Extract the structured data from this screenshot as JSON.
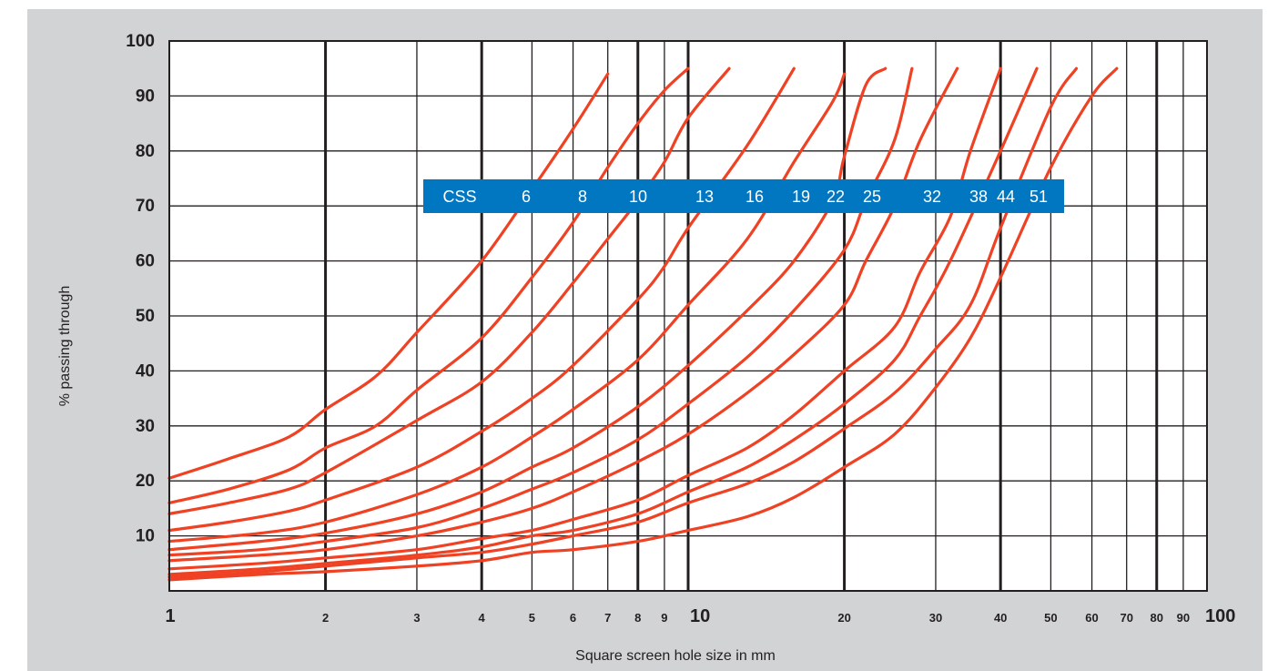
{
  "chart_data": {
    "type": "line",
    "title": "",
    "xlabel": "Square screen hole size in mm",
    "ylabel": "% passing through",
    "x_scale": "log",
    "xlim": [
      1,
      100
    ],
    "ylim": [
      0,
      100
    ],
    "grid": true,
    "x_major_ticks": [
      1,
      10,
      100
    ],
    "x_minor_ticks": [
      2,
      3,
      4,
      5,
      6,
      7,
      8,
      9,
      20,
      30,
      40,
      50,
      60,
      70,
      80,
      90
    ],
    "x_tick_labels": [
      "1",
      "2",
      "3",
      "4",
      "5",
      "6",
      "7",
      "8",
      "9",
      "10",
      "20",
      "30",
      "40",
      "50",
      "60",
      "70",
      "80",
      "90",
      "100"
    ],
    "y_ticks": [
      10,
      20,
      30,
      40,
      50,
      60,
      70,
      80,
      90,
      100
    ],
    "y_tick_labels": [
      "10",
      "20",
      "30",
      "40",
      "50",
      "60",
      "70",
      "80",
      "90",
      "100"
    ],
    "legend_title": "CSS",
    "legend_placement": "top-center",
    "legend_color": "#0077c0",
    "line_color": "#ef4123",
    "series": [
      {
        "name": "6",
        "points": [
          [
            1,
            20.5
          ],
          [
            1.3,
            24
          ],
          [
            1.7,
            28
          ],
          [
            2,
            33
          ],
          [
            2.5,
            39
          ],
          [
            3,
            47
          ],
          [
            4,
            60
          ],
          [
            5,
            73
          ],
          [
            6,
            84
          ],
          [
            7,
            94
          ]
        ]
      },
      {
        "name": "8",
        "points": [
          [
            1,
            16
          ],
          [
            1.3,
            18.5
          ],
          [
            1.7,
            22
          ],
          [
            2,
            26
          ],
          [
            2.5,
            30
          ],
          [
            3,
            36.5
          ],
          [
            4,
            46
          ],
          [
            5,
            57
          ],
          [
            6,
            67
          ],
          [
            7,
            77
          ],
          [
            8,
            85
          ],
          [
            9,
            91
          ],
          [
            10,
            95
          ]
        ]
      },
      {
        "name": "10",
        "points": [
          [
            1,
            14
          ],
          [
            1.3,
            16
          ],
          [
            1.7,
            18.5
          ],
          [
            2,
            21.5
          ],
          [
            3,
            31
          ],
          [
            4,
            38
          ],
          [
            5,
            47
          ],
          [
            6,
            56
          ],
          [
            7,
            64
          ],
          [
            8,
            71
          ],
          [
            9,
            78
          ],
          [
            10,
            86
          ],
          [
            12,
            95
          ]
        ]
      },
      {
        "name": "13",
        "points": [
          [
            1,
            11
          ],
          [
            1.3,
            12.5
          ],
          [
            1.7,
            14.5
          ],
          [
            2,
            16.5
          ],
          [
            3,
            22.5
          ],
          [
            4,
            29
          ],
          [
            5,
            35
          ],
          [
            6,
            41
          ],
          [
            8,
            53
          ],
          [
            9,
            59
          ],
          [
            10,
            66
          ],
          [
            13,
            81
          ],
          [
            16,
            95
          ]
        ]
      },
      {
        "name": "16",
        "points": [
          [
            1,
            9
          ],
          [
            1.5,
            10.5
          ],
          [
            2,
            12.5
          ],
          [
            3,
            17.5
          ],
          [
            4,
            22.5
          ],
          [
            5,
            28
          ],
          [
            6,
            33
          ],
          [
            8,
            42
          ],
          [
            10,
            52
          ],
          [
            13,
            64
          ],
          [
            16,
            78
          ],
          [
            19,
            89
          ],
          [
            20,
            94
          ]
        ]
      },
      {
        "name": "19",
        "points": [
          [
            1,
            7.5
          ],
          [
            1.5,
            9
          ],
          [
            2,
            10.5
          ],
          [
            3,
            14
          ],
          [
            4,
            18
          ],
          [
            5,
            22.5
          ],
          [
            6,
            26
          ],
          [
            8,
            33.5
          ],
          [
            10,
            41
          ],
          [
            13,
            51
          ],
          [
            16,
            60
          ],
          [
            19,
            71
          ],
          [
            20,
            79
          ],
          [
            22,
            92
          ],
          [
            24,
            95
          ]
        ]
      },
      {
        "name": "22",
        "points": [
          [
            1,
            6.5
          ],
          [
            1.5,
            7.5
          ],
          [
            2,
            9
          ],
          [
            3,
            11.5
          ],
          [
            4,
            15
          ],
          [
            5,
            18.5
          ],
          [
            6,
            21.5
          ],
          [
            8,
            27.5
          ],
          [
            10,
            34
          ],
          [
            13,
            42.5
          ],
          [
            16,
            51
          ],
          [
            20,
            62
          ],
          [
            22,
            71
          ],
          [
            25,
            82
          ],
          [
            27,
            95
          ]
        ]
      },
      {
        "name": "25",
        "points": [
          [
            1,
            5.5
          ],
          [
            1.5,
            6.5
          ],
          [
            2,
            7.5
          ],
          [
            3,
            10
          ],
          [
            4,
            12.5
          ],
          [
            5,
            15
          ],
          [
            6,
            18
          ],
          [
            8,
            23.5
          ],
          [
            10,
            28.5
          ],
          [
            13,
            36
          ],
          [
            16,
            43
          ],
          [
            20,
            52
          ],
          [
            22,
            60
          ],
          [
            25,
            70
          ],
          [
            28,
            82
          ],
          [
            33,
            95
          ]
        ]
      },
      {
        "name": "32",
        "points": [
          [
            1,
            4
          ],
          [
            1.5,
            5
          ],
          [
            2,
            6
          ],
          [
            3,
            7.5
          ],
          [
            4,
            9.5
          ],
          [
            5,
            11
          ],
          [
            6,
            13
          ],
          [
            8,
            16.5
          ],
          [
            10,
            21
          ],
          [
            13,
            26
          ],
          [
            16,
            32
          ],
          [
            20,
            40
          ],
          [
            25,
            48
          ],
          [
            28,
            58
          ],
          [
            32,
            68
          ],
          [
            35,
            80
          ],
          [
            40,
            95
          ]
        ]
      },
      {
        "name": "38",
        "points": [
          [
            1,
            3
          ],
          [
            1.5,
            4
          ],
          [
            2,
            5
          ],
          [
            3,
            6.5
          ],
          [
            4,
            8
          ],
          [
            5,
            10
          ],
          [
            6,
            11
          ],
          [
            8,
            14
          ],
          [
            10,
            18
          ],
          [
            13,
            22.5
          ],
          [
            16,
            27.5
          ],
          [
            20,
            34
          ],
          [
            25,
            42
          ],
          [
            28,
            50
          ],
          [
            32,
            60
          ],
          [
            40,
            80
          ],
          [
            47,
            95
          ]
        ]
      },
      {
        "name": "44",
        "points": [
          [
            1,
            2.5
          ],
          [
            1.5,
            3.5
          ],
          [
            2,
            4.5
          ],
          [
            3,
            6
          ],
          [
            4,
            7
          ],
          [
            5,
            8.5
          ],
          [
            6,
            10
          ],
          [
            8,
            12.5
          ],
          [
            10,
            16
          ],
          [
            13,
            19.5
          ],
          [
            16,
            23.5
          ],
          [
            20,
            29.5
          ],
          [
            25,
            36
          ],
          [
            30,
            44
          ],
          [
            35,
            52
          ],
          [
            40,
            66
          ],
          [
            50,
            88
          ],
          [
            56,
            95
          ]
        ]
      },
      {
        "name": "51",
        "points": [
          [
            1,
            2
          ],
          [
            1.5,
            3
          ],
          [
            2,
            3.5
          ],
          [
            3,
            4.5
          ],
          [
            4,
            5.5
          ],
          [
            5,
            7
          ],
          [
            6,
            7.5
          ],
          [
            8,
            9
          ],
          [
            10,
            11
          ],
          [
            13,
            13.5
          ],
          [
            16,
            17
          ],
          [
            20,
            22.5
          ],
          [
            25,
            28.5
          ],
          [
            30,
            37
          ],
          [
            35,
            46
          ],
          [
            40,
            57
          ],
          [
            50,
            77
          ],
          [
            60,
            90
          ],
          [
            67,
            95
          ]
        ]
      }
    ]
  }
}
